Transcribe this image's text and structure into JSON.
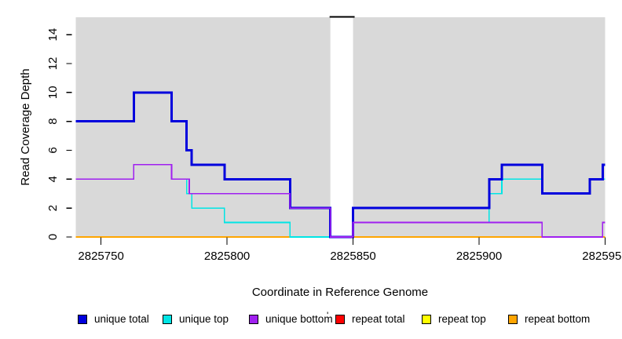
{
  "chart_data": {
    "type": "line",
    "subtype": "step",
    "title": "",
    "xlabel": "Coordinate in Reference Genome",
    "ylabel": "Read Coverage Depth",
    "xlim": [
      2825740,
      2825950
    ],
    "ylim": [
      0,
      15.2
    ],
    "grid": false,
    "plot_background": "#d9d9d9",
    "legend_position": "bottom",
    "x_ticks": [
      {
        "value": 2825750,
        "label": "2825750"
      },
      {
        "value": 2825800,
        "label": "2825800"
      },
      {
        "value": 2825850,
        "label": "2825850"
      },
      {
        "value": 2825900,
        "label": "2825900"
      },
      {
        "value": 2825950,
        "label": "2825950"
      }
    ],
    "y_ticks": [
      {
        "value": 0,
        "label": "0"
      },
      {
        "value": 2,
        "label": "2"
      },
      {
        "value": 4,
        "label": "4"
      },
      {
        "value": 6,
        "label": "6"
      },
      {
        "value": 8,
        "label": "8"
      },
      {
        "value": 10,
        "label": "10"
      },
      {
        "value": 12,
        "label": "12"
      },
      {
        "value": 14,
        "label": "14"
      }
    ],
    "gap_band": {
      "x1": 2825841,
      "x2": 2825850,
      "fill": "#ffffff",
      "offscale_cap_color": "#000000"
    },
    "series": [
      {
        "name": "unique total",
        "color": "#0000dd",
        "steps": [
          [
            2825740,
            8
          ],
          [
            2825763,
            10
          ],
          [
            2825778,
            8
          ],
          [
            2825784,
            6
          ],
          [
            2825786,
            5
          ],
          [
            2825799,
            4
          ],
          [
            2825825,
            2
          ],
          [
            2825841,
            0
          ],
          [
            2825850,
            2
          ],
          [
            2825904,
            4
          ],
          [
            2825909,
            5
          ],
          [
            2825925,
            3
          ],
          [
            2825944,
            4
          ],
          [
            2825949,
            5
          ],
          [
            2825950,
            5
          ]
        ]
      },
      {
        "name": "unique top",
        "color": "#00e5e5",
        "steps": [
          [
            2825740,
            4
          ],
          [
            2825763,
            5
          ],
          [
            2825778,
            4
          ],
          [
            2825784,
            3
          ],
          [
            2825786,
            2
          ],
          [
            2825799,
            1
          ],
          [
            2825825,
            0
          ],
          [
            2825850,
            1
          ],
          [
            2825904,
            3
          ],
          [
            2825909,
            4
          ],
          [
            2825925,
            3
          ],
          [
            2825944,
            4
          ],
          [
            2825950,
            4
          ]
        ]
      },
      {
        "name": "unique bottom",
        "color": "#a020f0",
        "steps": [
          [
            2825740,
            4
          ],
          [
            2825763,
            5
          ],
          [
            2825778,
            4
          ],
          [
            2825785,
            3
          ],
          [
            2825825,
            2
          ],
          [
            2825841,
            0
          ],
          [
            2825850,
            1
          ],
          [
            2825925,
            0
          ],
          [
            2825949,
            1
          ],
          [
            2825950,
            1
          ]
        ]
      },
      {
        "name": "repeat total",
        "color": "#ee0000",
        "steps": [
          [
            2825740,
            0
          ],
          [
            2825950,
            0
          ]
        ]
      },
      {
        "name": "repeat top",
        "color": "#ffff00",
        "steps": [
          [
            2825740,
            0
          ],
          [
            2825950,
            0
          ]
        ]
      },
      {
        "name": "repeat bottom",
        "color": "#ffa500",
        "steps": [
          [
            2825740,
            0
          ],
          [
            2825950,
            0
          ]
        ]
      }
    ]
  },
  "legend": {
    "items": [
      {
        "label": "unique total",
        "color": "#0000dd"
      },
      {
        "label": "unique top",
        "color": "#00e5e5"
      },
      {
        "label": "unique bottom",
        "color": "#a020f0"
      },
      {
        "label": "repeat total",
        "color": "#ff0000"
      },
      {
        "label": "repeat top",
        "color": "#ffff00"
      },
      {
        "label": "repeat bottom",
        "color": "#ffa500"
      }
    ],
    "stray_mark": "'"
  }
}
